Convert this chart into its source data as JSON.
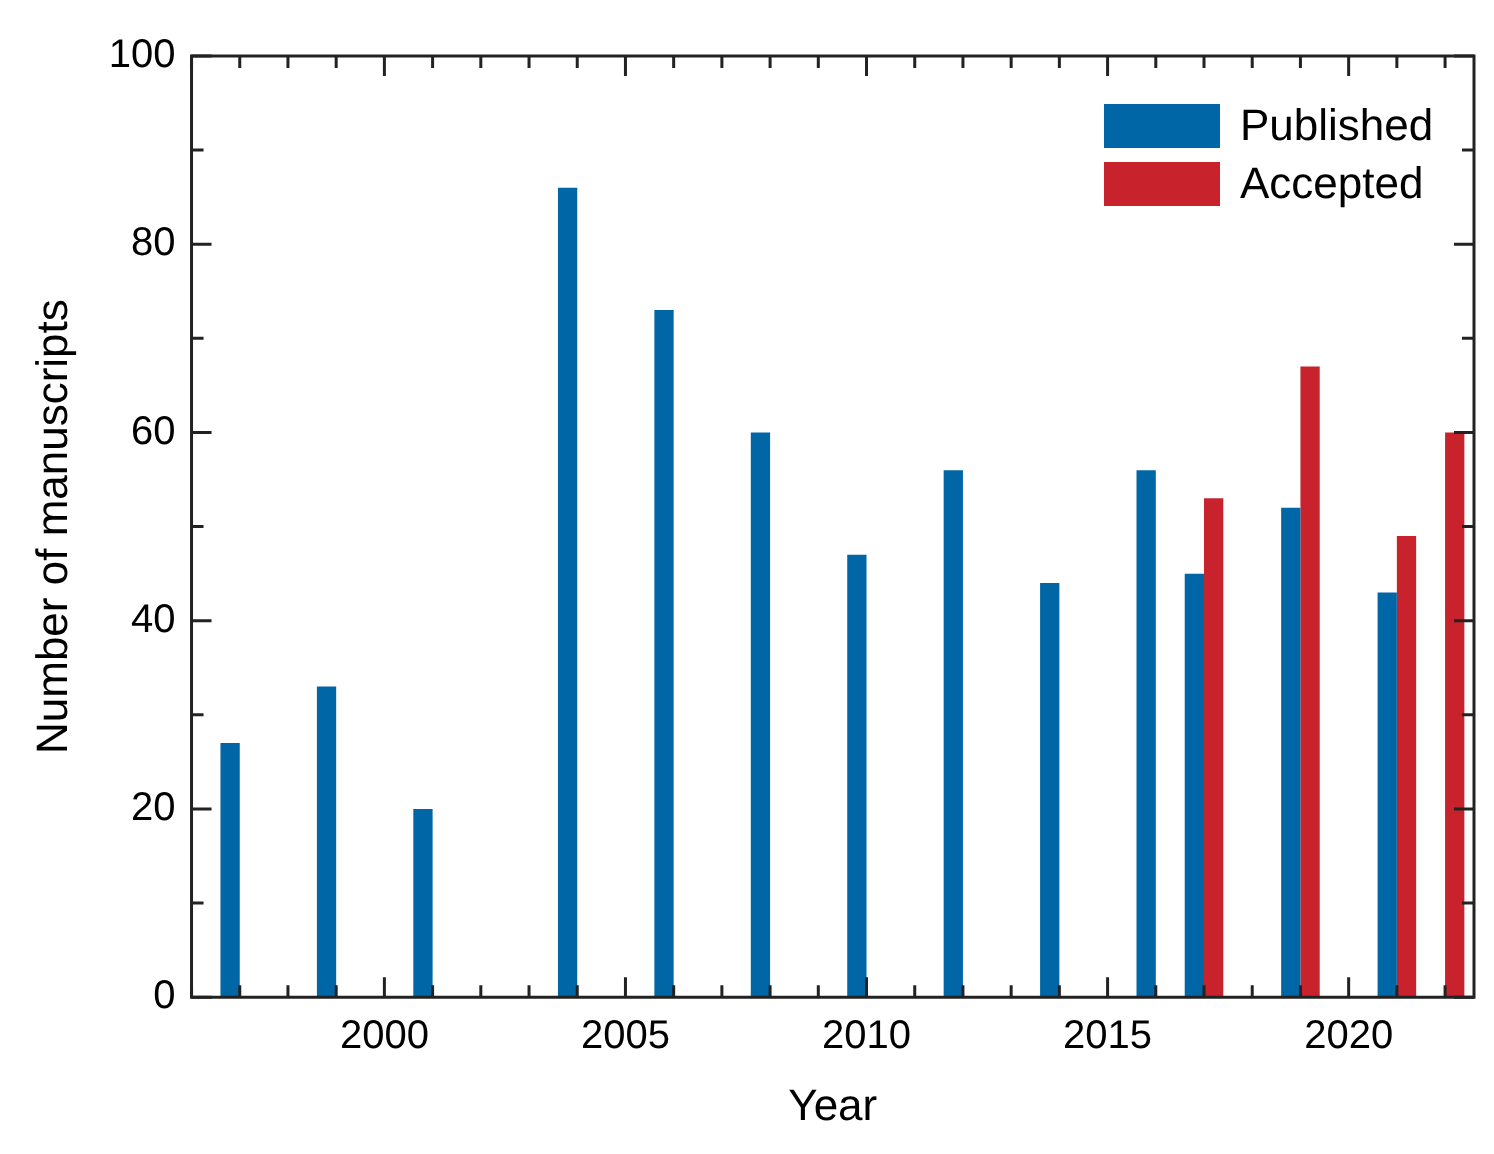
{
  "chart_data": {
    "type": "bar",
    "xlabel": "Year",
    "ylabel": "Number of manuscripts",
    "series": [
      {
        "name": "Published",
        "color": "#0066a6",
        "x": [
          1997,
          1999,
          2001,
          2004,
          2006,
          2008,
          2010,
          2012,
          2014,
          2016,
          2017,
          2019,
          2021
        ],
        "values": [
          27,
          33,
          20,
          86,
          73,
          60,
          47,
          56,
          44,
          56,
          45,
          52,
          43
        ]
      },
      {
        "name": "Accepted",
        "color": "#c8232c",
        "x": [
          2017,
          2019,
          2021,
          2022
        ],
        "values": [
          53,
          67,
          49,
          60
        ]
      }
    ],
    "xlim": [
      1996,
      2022.6
    ],
    "xticks": [
      {
        "value": 1996,
        "label": null
      },
      {
        "value": 1997,
        "label": null
      },
      {
        "value": 1998,
        "label": null
      },
      {
        "value": 1999,
        "label": null
      },
      2000,
      {
        "value": 2001,
        "label": null
      },
      {
        "value": 2002,
        "label": null
      },
      {
        "value": 2003,
        "label": null
      },
      {
        "value": 2004,
        "label": null
      },
      2005,
      {
        "value": 2006,
        "label": null
      },
      {
        "value": 2007,
        "label": null
      },
      {
        "value": 2008,
        "label": null
      },
      {
        "value": 2009,
        "label": null
      },
      2010,
      {
        "value": 2011,
        "label": null
      },
      {
        "value": 2012,
        "label": null
      },
      {
        "value": 2013,
        "label": null
      },
      {
        "value": 2014,
        "label": null
      },
      2015,
      {
        "value": 2016,
        "label": null
      },
      {
        "value": 2017,
        "label": null
      },
      {
        "value": 2018,
        "label": null
      },
      {
        "value": 2019,
        "label": null
      },
      2020,
      {
        "value": 2021,
        "label": null
      },
      {
        "value": 2022,
        "label": null
      }
    ],
    "ylim": [
      0,
      100
    ],
    "yticks": [
      0,
      {
        "value": 10,
        "label": null
      },
      20,
      {
        "value": 30,
        "label": null
      },
      40,
      {
        "value": 50,
        "label": null
      },
      60,
      {
        "value": 70,
        "label": null
      },
      80,
      {
        "value": 90,
        "label": null
      },
      100
    ],
    "grid": false,
    "legend": "top right"
  }
}
